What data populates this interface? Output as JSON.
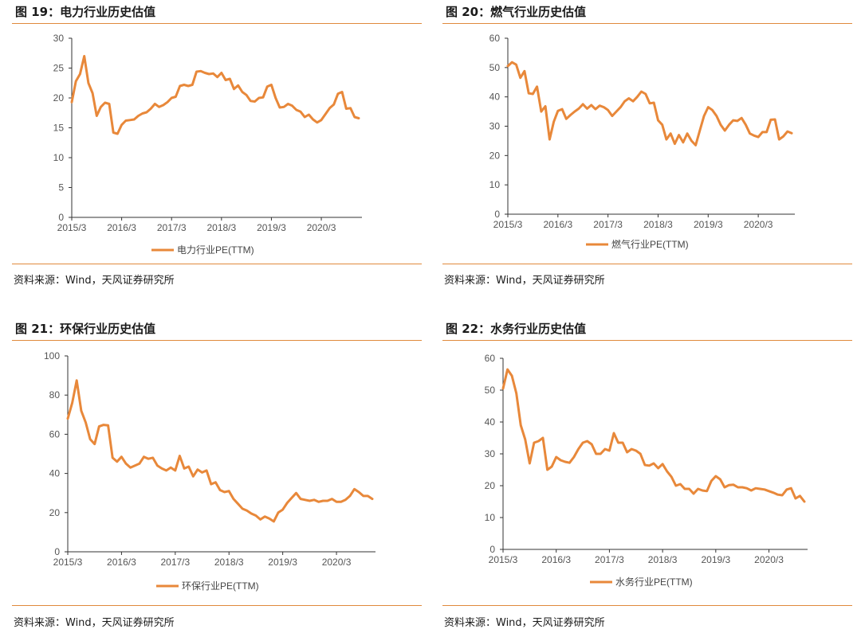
{
  "source_text": "资料来源：Wind，天风证券研究所",
  "line_color": "#e8883a",
  "chart_data": [
    {
      "type": "line",
      "title": "图 19：电力行业历史估值",
      "series_name": "电力行业PE(TTM)",
      "ylim": [
        0,
        30
      ],
      "yticks": [
        0,
        5,
        10,
        15,
        20,
        25,
        30
      ],
      "xticks": [
        "2015/3",
        "2016/3",
        "2017/3",
        "2018/3",
        "2019/3",
        "2020/3"
      ],
      "x_start": "2015/3",
      "values": [
        19.3,
        22.8,
        24.0,
        27.0,
        22.5,
        20.8,
        17.0,
        18.5,
        19.2,
        19.0,
        14.2,
        14.0,
        15.5,
        16.2,
        16.3,
        16.4,
        17.0,
        17.4,
        17.6,
        18.2,
        19.0,
        18.5,
        18.8,
        19.3,
        20.0,
        20.2,
        22.0,
        22.2,
        22.0,
        22.2,
        24.4,
        24.5,
        24.2,
        24.0,
        24.1,
        23.5,
        24.2,
        23.0,
        23.2,
        21.5,
        22.1,
        21.0,
        20.5,
        19.5,
        19.4,
        20.0,
        20.1,
        21.9,
        22.2,
        20.0,
        18.4,
        18.5,
        19.0,
        18.7,
        18.0,
        17.7,
        16.8,
        17.2,
        16.4,
        15.9,
        16.3,
        17.3,
        18.3,
        18.9,
        20.7,
        21.0,
        18.2,
        18.3,
        16.8,
        16.6
      ]
    },
    {
      "type": "line",
      "title": "图 20：燃气行业历史估值",
      "series_name": "燃气行业PE(TTM)",
      "ylim": [
        0,
        60
      ],
      "yticks": [
        0,
        10,
        20,
        30,
        40,
        50,
        60
      ],
      "xticks": [
        "2015/3",
        "2016/3",
        "2017/3",
        "2018/3",
        "2019/3",
        "2020/3"
      ],
      "x_start": "2015/3",
      "values": [
        50.5,
        51.8,
        51.0,
        46.5,
        48.8,
        41.2,
        41.0,
        43.5,
        35.0,
        36.8,
        25.5,
        31.5,
        35.2,
        35.8,
        32.5,
        33.8,
        35.0,
        36.0,
        37.5,
        36.0,
        37.2,
        35.8,
        37.0,
        36.5,
        35.5,
        33.5,
        35.0,
        36.5,
        38.5,
        39.5,
        38.5,
        40.0,
        41.8,
        41.0,
        37.8,
        38.0,
        32.0,
        30.5,
        25.5,
        27.5,
        24.0,
        27.0,
        24.5,
        27.5,
        25.0,
        23.5,
        28.5,
        33.5,
        36.5,
        35.5,
        33.5,
        30.5,
        28.5,
        30.5,
        32.0,
        31.8,
        32.8,
        30.5,
        27.5,
        26.8,
        26.3,
        28.0,
        28.0,
        32.2,
        32.3,
        25.5,
        26.5,
        28.2,
        27.6
      ]
    },
    {
      "type": "line",
      "title": "图 21：环保行业历史估值",
      "series_name": "环保行业PE(TTM)",
      "ylim": [
        0,
        100
      ],
      "yticks": [
        0,
        20,
        40,
        60,
        80,
        100
      ],
      "xticks": [
        "2015/3",
        "2016/3",
        "2017/3",
        "2018/3",
        "2019/3",
        "2020/3"
      ],
      "x_start": "2015/3",
      "values": [
        68.0,
        76.0,
        87.5,
        72.0,
        66.0,
        57.5,
        55.0,
        64.0,
        64.8,
        64.5,
        48.0,
        46.0,
        48.5,
        45.0,
        43.0,
        44.0,
        45.0,
        48.5,
        47.5,
        48.0,
        44.0,
        42.5,
        41.5,
        43.0,
        41.5,
        49.0,
        42.5,
        43.5,
        38.5,
        42.0,
        40.5,
        41.5,
        34.5,
        35.5,
        31.5,
        30.5,
        31.0,
        27.0,
        24.5,
        22.0,
        21.0,
        19.5,
        18.5,
        16.5,
        18.0,
        17.0,
        15.5,
        20.0,
        21.5,
        25.0,
        27.5,
        30.0,
        27.0,
        26.5,
        26.0,
        26.5,
        25.5,
        26.0,
        26.0,
        27.0,
        25.5,
        25.5,
        26.5,
        28.5,
        32.0,
        30.5,
        28.5,
        28.5,
        27.0
      ]
    },
    {
      "type": "line",
      "title": "图 22：水务行业历史估值",
      "series_name": "水务行业PE(TTM)",
      "ylim": [
        0,
        60
      ],
      "yticks": [
        0,
        10,
        20,
        30,
        40,
        50,
        60
      ],
      "xticks": [
        "2015/3",
        "2016/3",
        "2017/3",
        "2018/3",
        "2019/3",
        "2020/3"
      ],
      "x_start": "2015/3",
      "values": [
        50.5,
        56.5,
        54.5,
        49.0,
        39.0,
        34.5,
        27.0,
        33.5,
        34.0,
        35.0,
        25.0,
        26.0,
        29.0,
        28.0,
        27.5,
        27.2,
        29.0,
        31.5,
        33.5,
        34.0,
        33.0,
        30.0,
        30.0,
        31.5,
        31.0,
        36.5,
        33.5,
        33.5,
        30.5,
        31.5,
        31.0,
        30.0,
        26.5,
        26.3,
        27.0,
        25.5,
        26.8,
        24.5,
        22.8,
        20.0,
        20.5,
        19.0,
        19.0,
        17.5,
        19.0,
        18.5,
        18.3,
        21.5,
        23.0,
        22.0,
        19.5,
        20.2,
        20.3,
        19.5,
        19.5,
        19.2,
        18.5,
        19.2,
        19.0,
        18.8,
        18.3,
        17.8,
        17.2,
        17.0,
        18.8,
        19.2,
        16.0,
        16.8,
        15.0
      ]
    }
  ]
}
